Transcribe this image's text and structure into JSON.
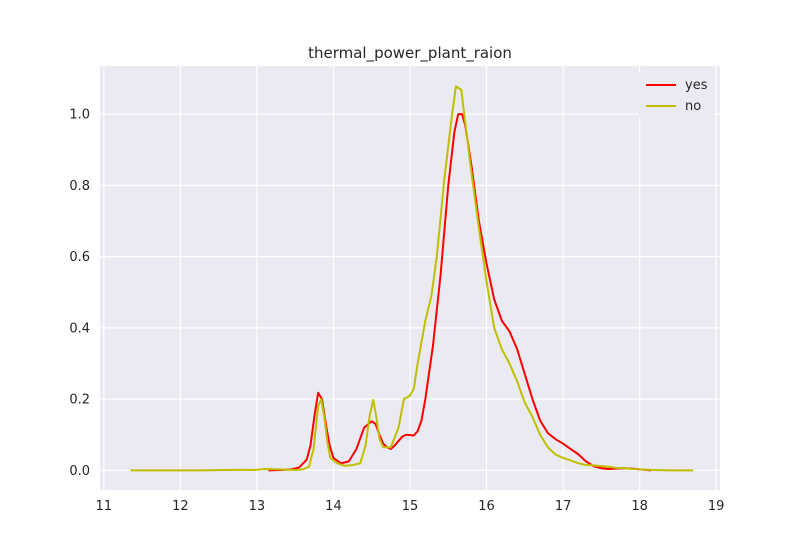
{
  "chart_data": {
    "type": "line",
    "title": "thermal_power_plant_raion",
    "xlabel": "",
    "ylabel": "",
    "xlim": [
      10.95,
      19.05
    ],
    "ylim": [
      -0.055,
      1.135
    ],
    "xticks": [
      11,
      12,
      13,
      14,
      15,
      16,
      17,
      18,
      19
    ],
    "yticks": [
      0.0,
      0.2,
      0.4,
      0.6,
      0.8,
      1.0
    ],
    "ytick_labels": [
      "0.0",
      "0.2",
      "0.4",
      "0.6",
      "0.8",
      "1.0"
    ],
    "grid": true,
    "legend": "top-right",
    "series": [
      {
        "name": "yes",
        "color": "#ff0000",
        "points": [
          [
            13.15,
            0.0
          ],
          [
            13.3,
            0.001
          ],
          [
            13.45,
            0.003
          ],
          [
            13.55,
            0.008
          ],
          [
            13.65,
            0.03
          ],
          [
            13.7,
            0.07
          ],
          [
            13.75,
            0.15
          ],
          [
            13.8,
            0.218
          ],
          [
            13.85,
            0.2
          ],
          [
            13.9,
            0.13
          ],
          [
            13.95,
            0.07
          ],
          [
            14.0,
            0.035
          ],
          [
            14.1,
            0.02
          ],
          [
            14.2,
            0.025
          ],
          [
            14.3,
            0.06
          ],
          [
            14.4,
            0.12
          ],
          [
            14.5,
            0.138
          ],
          [
            14.55,
            0.13
          ],
          [
            14.6,
            0.1
          ],
          [
            14.65,
            0.075
          ],
          [
            14.7,
            0.065
          ],
          [
            14.75,
            0.06
          ],
          [
            14.8,
            0.07
          ],
          [
            14.9,
            0.095
          ],
          [
            14.95,
            0.1
          ],
          [
            15.05,
            0.098
          ],
          [
            15.1,
            0.11
          ],
          [
            15.15,
            0.14
          ],
          [
            15.2,
            0.2
          ],
          [
            15.3,
            0.35
          ],
          [
            15.4,
            0.55
          ],
          [
            15.5,
            0.8
          ],
          [
            15.58,
            0.95
          ],
          [
            15.63,
            1.0
          ],
          [
            15.68,
            1.0
          ],
          [
            15.72,
            0.97
          ],
          [
            15.8,
            0.86
          ],
          [
            15.9,
            0.7
          ],
          [
            16.0,
            0.58
          ],
          [
            16.1,
            0.48
          ],
          [
            16.2,
            0.42
          ],
          [
            16.3,
            0.39
          ],
          [
            16.4,
            0.34
          ],
          [
            16.5,
            0.27
          ],
          [
            16.6,
            0.2
          ],
          [
            16.7,
            0.14
          ],
          [
            16.8,
            0.105
          ],
          [
            16.9,
            0.088
          ],
          [
            17.0,
            0.075
          ],
          [
            17.1,
            0.06
          ],
          [
            17.2,
            0.045
          ],
          [
            17.3,
            0.025
          ],
          [
            17.4,
            0.012
          ],
          [
            17.5,
            0.006
          ],
          [
            17.6,
            0.004
          ],
          [
            17.7,
            0.005
          ],
          [
            17.8,
            0.006
          ],
          [
            17.9,
            0.005
          ],
          [
            18.0,
            0.003
          ],
          [
            18.1,
            0.001
          ],
          [
            18.15,
            0.0
          ]
        ]
      },
      {
        "name": "no",
        "color": "#bfbf00",
        "points": [
          [
            11.35,
            0.0
          ],
          [
            11.8,
            0.0
          ],
          [
            12.3,
            0.0
          ],
          [
            12.6,
            0.001
          ],
          [
            12.8,
            0.002
          ],
          [
            12.95,
            0.001
          ],
          [
            13.1,
            0.004
          ],
          [
            13.3,
            0.003
          ],
          [
            13.5,
            0.001
          ],
          [
            13.6,
            0.003
          ],
          [
            13.68,
            0.01
          ],
          [
            13.74,
            0.06
          ],
          [
            13.8,
            0.18
          ],
          [
            13.84,
            0.2
          ],
          [
            13.88,
            0.15
          ],
          [
            13.92,
            0.08
          ],
          [
            13.96,
            0.035
          ],
          [
            14.05,
            0.02
          ],
          [
            14.15,
            0.013
          ],
          [
            14.25,
            0.015
          ],
          [
            14.35,
            0.02
          ],
          [
            14.42,
            0.07
          ],
          [
            14.47,
            0.15
          ],
          [
            14.52,
            0.198
          ],
          [
            14.56,
            0.15
          ],
          [
            14.6,
            0.09
          ],
          [
            14.65,
            0.065
          ],
          [
            14.75,
            0.065
          ],
          [
            14.85,
            0.12
          ],
          [
            14.92,
            0.2
          ],
          [
            15.0,
            0.21
          ],
          [
            15.05,
            0.23
          ],
          [
            15.1,
            0.3
          ],
          [
            15.2,
            0.42
          ],
          [
            15.28,
            0.49
          ],
          [
            15.35,
            0.6
          ],
          [
            15.45,
            0.82
          ],
          [
            15.55,
            1.0
          ],
          [
            15.6,
            1.078
          ],
          [
            15.67,
            1.068
          ],
          [
            15.72,
            0.98
          ],
          [
            15.8,
            0.84
          ],
          [
            15.9,
            0.68
          ],
          [
            16.0,
            0.53
          ],
          [
            16.1,
            0.4
          ],
          [
            16.2,
            0.34
          ],
          [
            16.3,
            0.3
          ],
          [
            16.4,
            0.25
          ],
          [
            16.5,
            0.19
          ],
          [
            16.6,
            0.15
          ],
          [
            16.7,
            0.1
          ],
          [
            16.8,
            0.065
          ],
          [
            16.9,
            0.045
          ],
          [
            17.0,
            0.035
          ],
          [
            17.1,
            0.028
          ],
          [
            17.2,
            0.02
          ],
          [
            17.3,
            0.015
          ],
          [
            17.4,
            0.014
          ],
          [
            17.5,
            0.012
          ],
          [
            17.6,
            0.01
          ],
          [
            17.7,
            0.007
          ],
          [
            17.8,
            0.006
          ],
          [
            17.9,
            0.004
          ],
          [
            18.0,
            0.003
          ],
          [
            18.1,
            0.002
          ],
          [
            18.2,
            0.001
          ],
          [
            18.4,
            0.0
          ],
          [
            18.7,
            0.0
          ]
        ]
      }
    ]
  }
}
